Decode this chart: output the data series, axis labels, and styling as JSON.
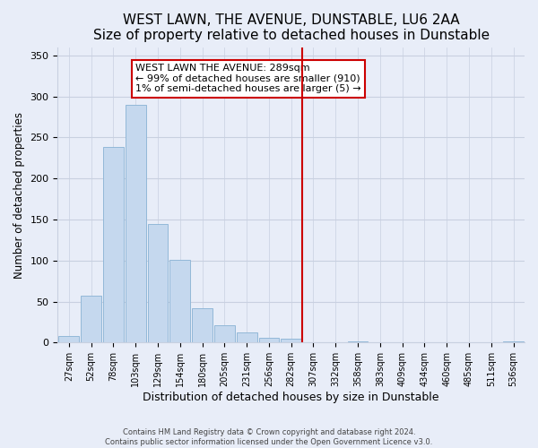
{
  "title": "WEST LAWN, THE AVENUE, DUNSTABLE, LU6 2AA",
  "subtitle": "Size of property relative to detached houses in Dunstable",
  "xlabel": "Distribution of detached houses by size in Dunstable",
  "ylabel": "Number of detached properties",
  "bar_labels": [
    "27sqm",
    "52sqm",
    "78sqm",
    "103sqm",
    "129sqm",
    "154sqm",
    "180sqm",
    "205sqm",
    "231sqm",
    "256sqm",
    "282sqm",
    "307sqm",
    "332sqm",
    "358sqm",
    "383sqm",
    "409sqm",
    "434sqm",
    "460sqm",
    "485sqm",
    "511sqm",
    "536sqm"
  ],
  "bar_heights": [
    8,
    57,
    239,
    290,
    145,
    101,
    42,
    21,
    12,
    6,
    5,
    0,
    0,
    2,
    0,
    0,
    0,
    0,
    0,
    0,
    2
  ],
  "bar_color": "#c5d8ee",
  "bar_edge_color": "#92b8d8",
  "vline_pos": 10.5,
  "annotation_line1": "WEST LAWN THE AVENUE: 289sqm",
  "annotation_line2": "← 99% of detached houses are smaller (910)",
  "annotation_line3": "1% of semi-detached houses are larger (5) →",
  "ylim": [
    0,
    360
  ],
  "yticks": [
    0,
    50,
    100,
    150,
    200,
    250,
    300,
    350
  ],
  "footer1": "Contains HM Land Registry data © Crown copyright and database right 2024.",
  "footer2": "Contains public sector information licensed under the Open Government Licence v3.0.",
  "title_fontsize": 11,
  "subtitle_fontsize": 9.5,
  "background_color": "#e8edf8",
  "grid_color": "#c8d0e0",
  "vline_color": "#cc0000"
}
